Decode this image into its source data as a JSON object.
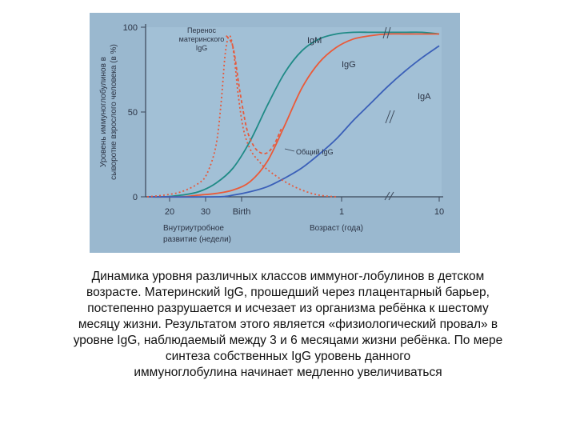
{
  "chart_data": {
    "type": "line",
    "ylabel_lines": [
      "Уровень иммуноглобулинов в",
      "сыворотке взрослого человека (в %)"
    ],
    "y_ticks": [
      "0",
      "50",
      "100"
    ],
    "ylim": [
      0,
      100
    ],
    "x_ticks": [
      {
        "label": "20",
        "pos": "20 недель"
      },
      {
        "label": "30",
        "pos": "30 недель"
      },
      {
        "label": "Birth",
        "pos": "рождение"
      },
      {
        "label": "1",
        "pos": "1 год"
      },
      {
        "label": "10",
        "pos": "10 лет"
      }
    ],
    "xlabel_prenatal_lines": [
      "Внутриутробное",
      "развитие (недели)"
    ],
    "xlabel_postnatal": "Возраст (года)",
    "annotation_transfer_lines": [
      "Перенос",
      "материнского",
      "IgG"
    ],
    "annotation_total": "Общий IgG",
    "series": [
      {
        "name": "IgM",
        "color": "#1f8a86",
        "style": "solid",
        "points": [
          [
            0,
            0
          ],
          [
            1,
            0
          ],
          [
            2,
            1
          ],
          [
            3,
            3
          ],
          [
            4,
            8
          ],
          [
            5,
            17
          ],
          [
            6,
            33
          ],
          [
            7,
            54
          ],
          [
            8,
            73
          ],
          [
            9,
            86
          ],
          [
            10,
            93
          ],
          [
            11,
            96
          ],
          [
            12,
            97
          ],
          [
            13,
            97
          ],
          [
            14,
            97
          ],
          [
            15,
            97
          ],
          [
            16,
            97
          ],
          [
            17,
            96
          ]
        ]
      },
      {
        "name": "IgG",
        "color": "#ea5a39",
        "style": "solid",
        "points": [
          [
            0,
            0
          ],
          [
            2,
            0
          ],
          [
            3,
            1
          ],
          [
            4,
            2
          ],
          [
            5,
            4
          ],
          [
            6,
            9
          ],
          [
            7,
            21
          ],
          [
            8,
            42
          ],
          [
            9,
            64
          ],
          [
            10,
            79
          ],
          [
            11,
            88
          ],
          [
            12,
            93
          ],
          [
            13,
            95
          ],
          [
            14,
            96
          ],
          [
            15,
            96
          ],
          [
            16,
            96
          ],
          [
            17,
            96
          ]
        ]
      },
      {
        "name": "IgA",
        "color": "#3a5fb8",
        "style": "solid",
        "points": [
          [
            0,
            0
          ],
          [
            4,
            0
          ],
          [
            5,
            1
          ],
          [
            6,
            3
          ],
          [
            7,
            6
          ],
          [
            8,
            11
          ],
          [
            9,
            17
          ],
          [
            10,
            25
          ],
          [
            11,
            34
          ],
          [
            12,
            45
          ],
          [
            13,
            55
          ],
          [
            14,
            65
          ],
          [
            15,
            74
          ],
          [
            16,
            82
          ],
          [
            17,
            89
          ]
        ]
      },
      {
        "name": "Перенос материнского IgG",
        "color": "#e55a3d",
        "style": "dotted",
        "points": [
          [
            0,
            0
          ],
          [
            1,
            1
          ],
          [
            2,
            3
          ],
          [
            3,
            8
          ],
          [
            3.5,
            14
          ],
          [
            4,
            30
          ],
          [
            4.3,
            55
          ],
          [
            4.55,
            85
          ],
          [
            4.8,
            95
          ],
          [
            5.05,
            84
          ],
          [
            5.3,
            60
          ],
          [
            5.6,
            40
          ],
          [
            6,
            28
          ],
          [
            6.5,
            21
          ],
          [
            7,
            16
          ],
          [
            8,
            9
          ],
          [
            9,
            4
          ],
          [
            10,
            1
          ],
          [
            11,
            0
          ]
        ]
      },
      {
        "name": "Общий IgG",
        "color": "#e55a3d",
        "style": "dashed",
        "points": [
          [
            4.6,
            95
          ],
          [
            5.0,
            88
          ],
          [
            5.4,
            62
          ],
          [
            5.8,
            40
          ],
          [
            6.2,
            30
          ],
          [
            6.6,
            26
          ],
          [
            7,
            26
          ],
          [
            7.4,
            31
          ],
          [
            7.8,
            40
          ]
        ]
      }
    ]
  },
  "caption_lines": [
    "Динамика уровня различных классов иммуног-лобулинов в детском",
    "возрасте. Материнский IgG, прошедший через плацентарный барьер,",
    "постепенно разрушается и исчезает из организма ребёнка к шестому",
    "месяцу жизни. Результатом этого является «физиологический провал» в",
    "уровне IgG, наблюдаемый между 3 и 6 месяцами жизни ребёнка. По мере",
    "синтеза собственных IgG уровень данного",
    "иммуноглобулина начинает медленно увеличиваться"
  ]
}
